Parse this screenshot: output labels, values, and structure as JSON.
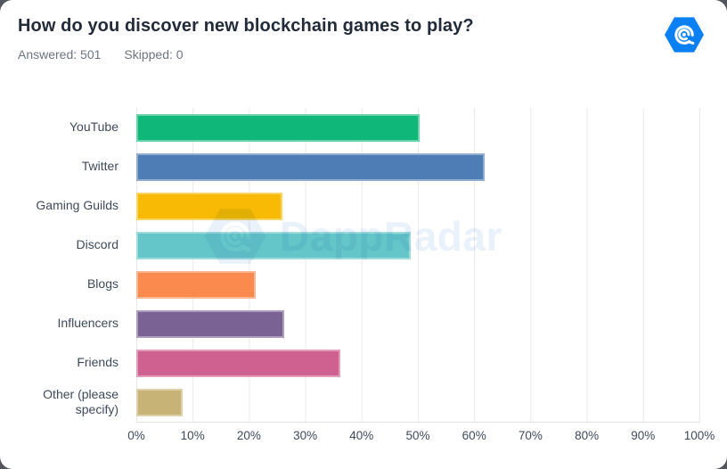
{
  "header": {
    "title": "How do you discover new blockchain games to play?",
    "answered": "Answered: 501",
    "skipped": "Skipped: 0"
  },
  "logo": {
    "name": "dappradar-logo",
    "color": "#0b80f5"
  },
  "watermark": {
    "text": "DappRadar",
    "color": "#e9f1fa"
  },
  "chart_data": {
    "type": "bar",
    "orientation": "horizontal",
    "title": "How do you discover new blockchain games to play?",
    "answered_count": 501,
    "skipped_count": 0,
    "categories": [
      "YouTube",
      "Twitter",
      "Gaming Guilds",
      "Discord",
      "Blogs",
      "Influencers",
      "Friends",
      "Other (please specify)"
    ],
    "values": [
      50.3,
      61.9,
      25.9,
      48.7,
      21.2,
      26.3,
      36.3,
      8.2
    ],
    "unit": "%",
    "bar_colors": [
      "#0fb878",
      "#4e7cb5",
      "#f8ba05",
      "#64c6c8",
      "#fb8a4e",
      "#7b6294",
      "#cf6190",
      "#c8b377"
    ],
    "xlim": [
      0,
      100
    ],
    "x_ticks": [
      "0%",
      "10%",
      "20%",
      "30%",
      "40%",
      "50%",
      "60%",
      "70%",
      "80%",
      "90%",
      "100%"
    ],
    "grid": "vertical-light",
    "legend": "none",
    "axis_text_color": "#3e4a5c",
    "gridline_color": "#e9e9e9"
  }
}
